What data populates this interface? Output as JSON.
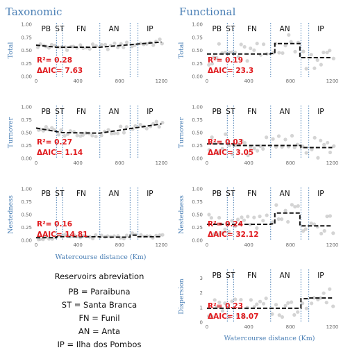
{
  "columns": {
    "left": "Taxonomic",
    "right": "Functional"
  },
  "x_axis_label": "Watercourse distance (Km)",
  "region_labels": [
    "PB",
    "ST",
    "FN",
    "AN",
    "IP"
  ],
  "legend": {
    "title": "Reservoirs abreviation",
    "items": [
      "PB = Paraibuna",
      "ST = Santa Branca",
      "FN = Funil",
      "AN = Anta",
      "IP = Ilha dos Pombos"
    ]
  },
  "colors": {
    "heading": "#4a7fb5",
    "stat": "#e0191d",
    "divider": "#4a7fb5",
    "points": "#b8b8b8",
    "trend": "#111111"
  },
  "chart_data": [
    {
      "id": "tax-total",
      "type": "scatter",
      "ylabel": "Total",
      "xlim": [
        0,
        1250
      ],
      "ylim": [
        0,
        1
      ],
      "xticks": [
        0,
        400,
        800,
        1200
      ],
      "yticks": [
        0.0,
        0.25,
        0.5,
        0.75,
        1.0
      ],
      "ytick_labels": [
        "0.00",
        "0.25",
        "0.50",
        "0.75",
        "1.00"
      ],
      "dividers": [
        195,
        255,
        610,
        900,
        975
      ],
      "stats": {
        "r2": "R²= 0.28",
        "aic": "ΔAIC= 7.63"
      },
      "trend": {
        "kind": "segments",
        "segments": [
          [
            0,
            195,
            0.6,
            0.56
          ],
          [
            195,
            610,
            0.56,
            0.56
          ],
          [
            610,
            1200,
            0.56,
            0.66
          ]
        ]
      },
      "spread": 0.06
    },
    {
      "id": "fun-total",
      "type": "scatter",
      "ylabel": "Total",
      "xlim": [
        0,
        1250
      ],
      "ylim": [
        0,
        1
      ],
      "xticks": [
        0,
        400,
        800,
        1200
      ],
      "yticks": [
        0.0,
        0.25,
        0.5,
        0.75,
        1.0
      ],
      "ytick_labels": [
        "0.00",
        "0.25",
        "0.50",
        "0.75",
        "1.00"
      ],
      "dividers": [
        195,
        255,
        610,
        900,
        975
      ],
      "stats": {
        "r2": "R²= 0.19",
        "aic": "ΔAIC= 23.3"
      },
      "trend": {
        "kind": "steps",
        "segments": [
          [
            0,
            610,
            0.43
          ],
          [
            610,
            650,
            0.44
          ],
          [
            650,
            890,
            0.63
          ],
          [
            890,
            1200,
            0.36
          ]
        ]
      },
      "spread": 0.22
    },
    {
      "id": "tax-turnover",
      "type": "scatter",
      "ylabel": "Turnover",
      "xlim": [
        0,
        1250
      ],
      "ylim": [
        0,
        1
      ],
      "xticks": [
        0,
        400,
        800,
        1200
      ],
      "yticks": [
        0.0,
        0.25,
        0.5,
        0.75,
        1.0
      ],
      "ytick_labels": [
        "0.00",
        "0.25",
        "0.50",
        "0.75",
        "1.00"
      ],
      "dividers": [
        195,
        255,
        610,
        900,
        975
      ],
      "stats": {
        "r2": "R²= 0.27",
        "aic": "ΔAIC= 1.14"
      },
      "trend": {
        "kind": "segments",
        "segments": [
          [
            0,
            255,
            0.59,
            0.5
          ],
          [
            255,
            610,
            0.5,
            0.49
          ],
          [
            610,
            1200,
            0.49,
            0.67
          ]
        ]
      },
      "spread": 0.07
    },
    {
      "id": "fun-turnover",
      "type": "scatter",
      "ylabel": "Turnover",
      "xlim": [
        0,
        1250
      ],
      "ylim": [
        0,
        1
      ],
      "xticks": [
        0,
        400,
        800,
        1200
      ],
      "yticks": [
        0.0,
        0.25,
        0.5,
        0.75,
        1.0
      ],
      "ytick_labels": [
        "0.00",
        "0.25",
        "0.50",
        "0.75",
        "1.00"
      ],
      "dividers": [
        195,
        255,
        610,
        900,
        975
      ],
      "stats": {
        "r2": "R²= 0.03",
        "aic": "ΔAIC= 3.05"
      },
      "trend": {
        "kind": "steps",
        "segments": [
          [
            0,
            255,
            0.28
          ],
          [
            255,
            900,
            0.25
          ],
          [
            900,
            1200,
            0.21
          ]
        ]
      },
      "spread": 0.2
    },
    {
      "id": "tax-nestedness",
      "type": "scatter",
      "ylabel": "Nestedness",
      "xlim": [
        0,
        1250
      ],
      "ylim": [
        0,
        1
      ],
      "xticks": [
        0,
        400,
        800,
        1200
      ],
      "yticks": [
        0.0,
        0.25,
        0.5,
        0.75,
        1.0
      ],
      "ytick_labels": [
        "0.00",
        "0.25",
        "0.50",
        "0.75",
        "1.00"
      ],
      "dividers": [
        195,
        255,
        610,
        900,
        975
      ],
      "stats": {
        "r2": "R²= 0.16",
        "aic": "ΔAIC= 14.81"
      },
      "trend": {
        "kind": "steps",
        "segments": [
          [
            0,
            195,
            0.05
          ],
          [
            195,
            610,
            0.07
          ],
          [
            610,
            900,
            0.06
          ],
          [
            900,
            975,
            0.1
          ],
          [
            975,
            1200,
            0.07
          ]
        ]
      },
      "spread": 0.04
    },
    {
      "id": "fun-nestedness",
      "type": "scatter",
      "ylabel": "Nestedness",
      "xlim": [
        0,
        1250
      ],
      "ylim": [
        0,
        1
      ],
      "xticks": [
        0,
        400,
        800,
        1200
      ],
      "yticks": [
        0.0,
        0.25,
        0.5,
        0.75,
        1.0
      ],
      "ytick_labels": [
        "0.00",
        "0.25",
        "0.50",
        "0.75",
        "1.00"
      ],
      "dividers": [
        195,
        255,
        610,
        900,
        975
      ],
      "stats": {
        "r2": "R²= 0.24",
        "aic": "ΔAIC= 32.12"
      },
      "trend": {
        "kind": "steps",
        "segments": [
          [
            0,
            610,
            0.31
          ],
          [
            610,
            650,
            0.32
          ],
          [
            650,
            890,
            0.53
          ],
          [
            890,
            1200,
            0.28
          ]
        ]
      },
      "spread": 0.2
    },
    {
      "id": "fun-dispersion",
      "type": "scatter",
      "ylabel": "Dispersion",
      "xlim": [
        0,
        1250
      ],
      "ylim": [
        0,
        3.5
      ],
      "xticks": [
        0,
        400,
        800,
        1200
      ],
      "yticks": [
        0,
        1,
        2,
        3
      ],
      "ytick_labels": [
        "0",
        "1",
        "2",
        "3"
      ],
      "dividers": [
        195,
        255,
        610,
        900,
        975
      ],
      "stats": {
        "r2": "R²= 0.23",
        "aic": "ΔAIC= 18.07"
      },
      "trend": {
        "kind": "steps",
        "segments": [
          [
            0,
            900,
            0.95
          ],
          [
            900,
            975,
            1.6
          ],
          [
            975,
            1200,
            1.65
          ]
        ]
      },
      "spread": 0.7
    }
  ]
}
